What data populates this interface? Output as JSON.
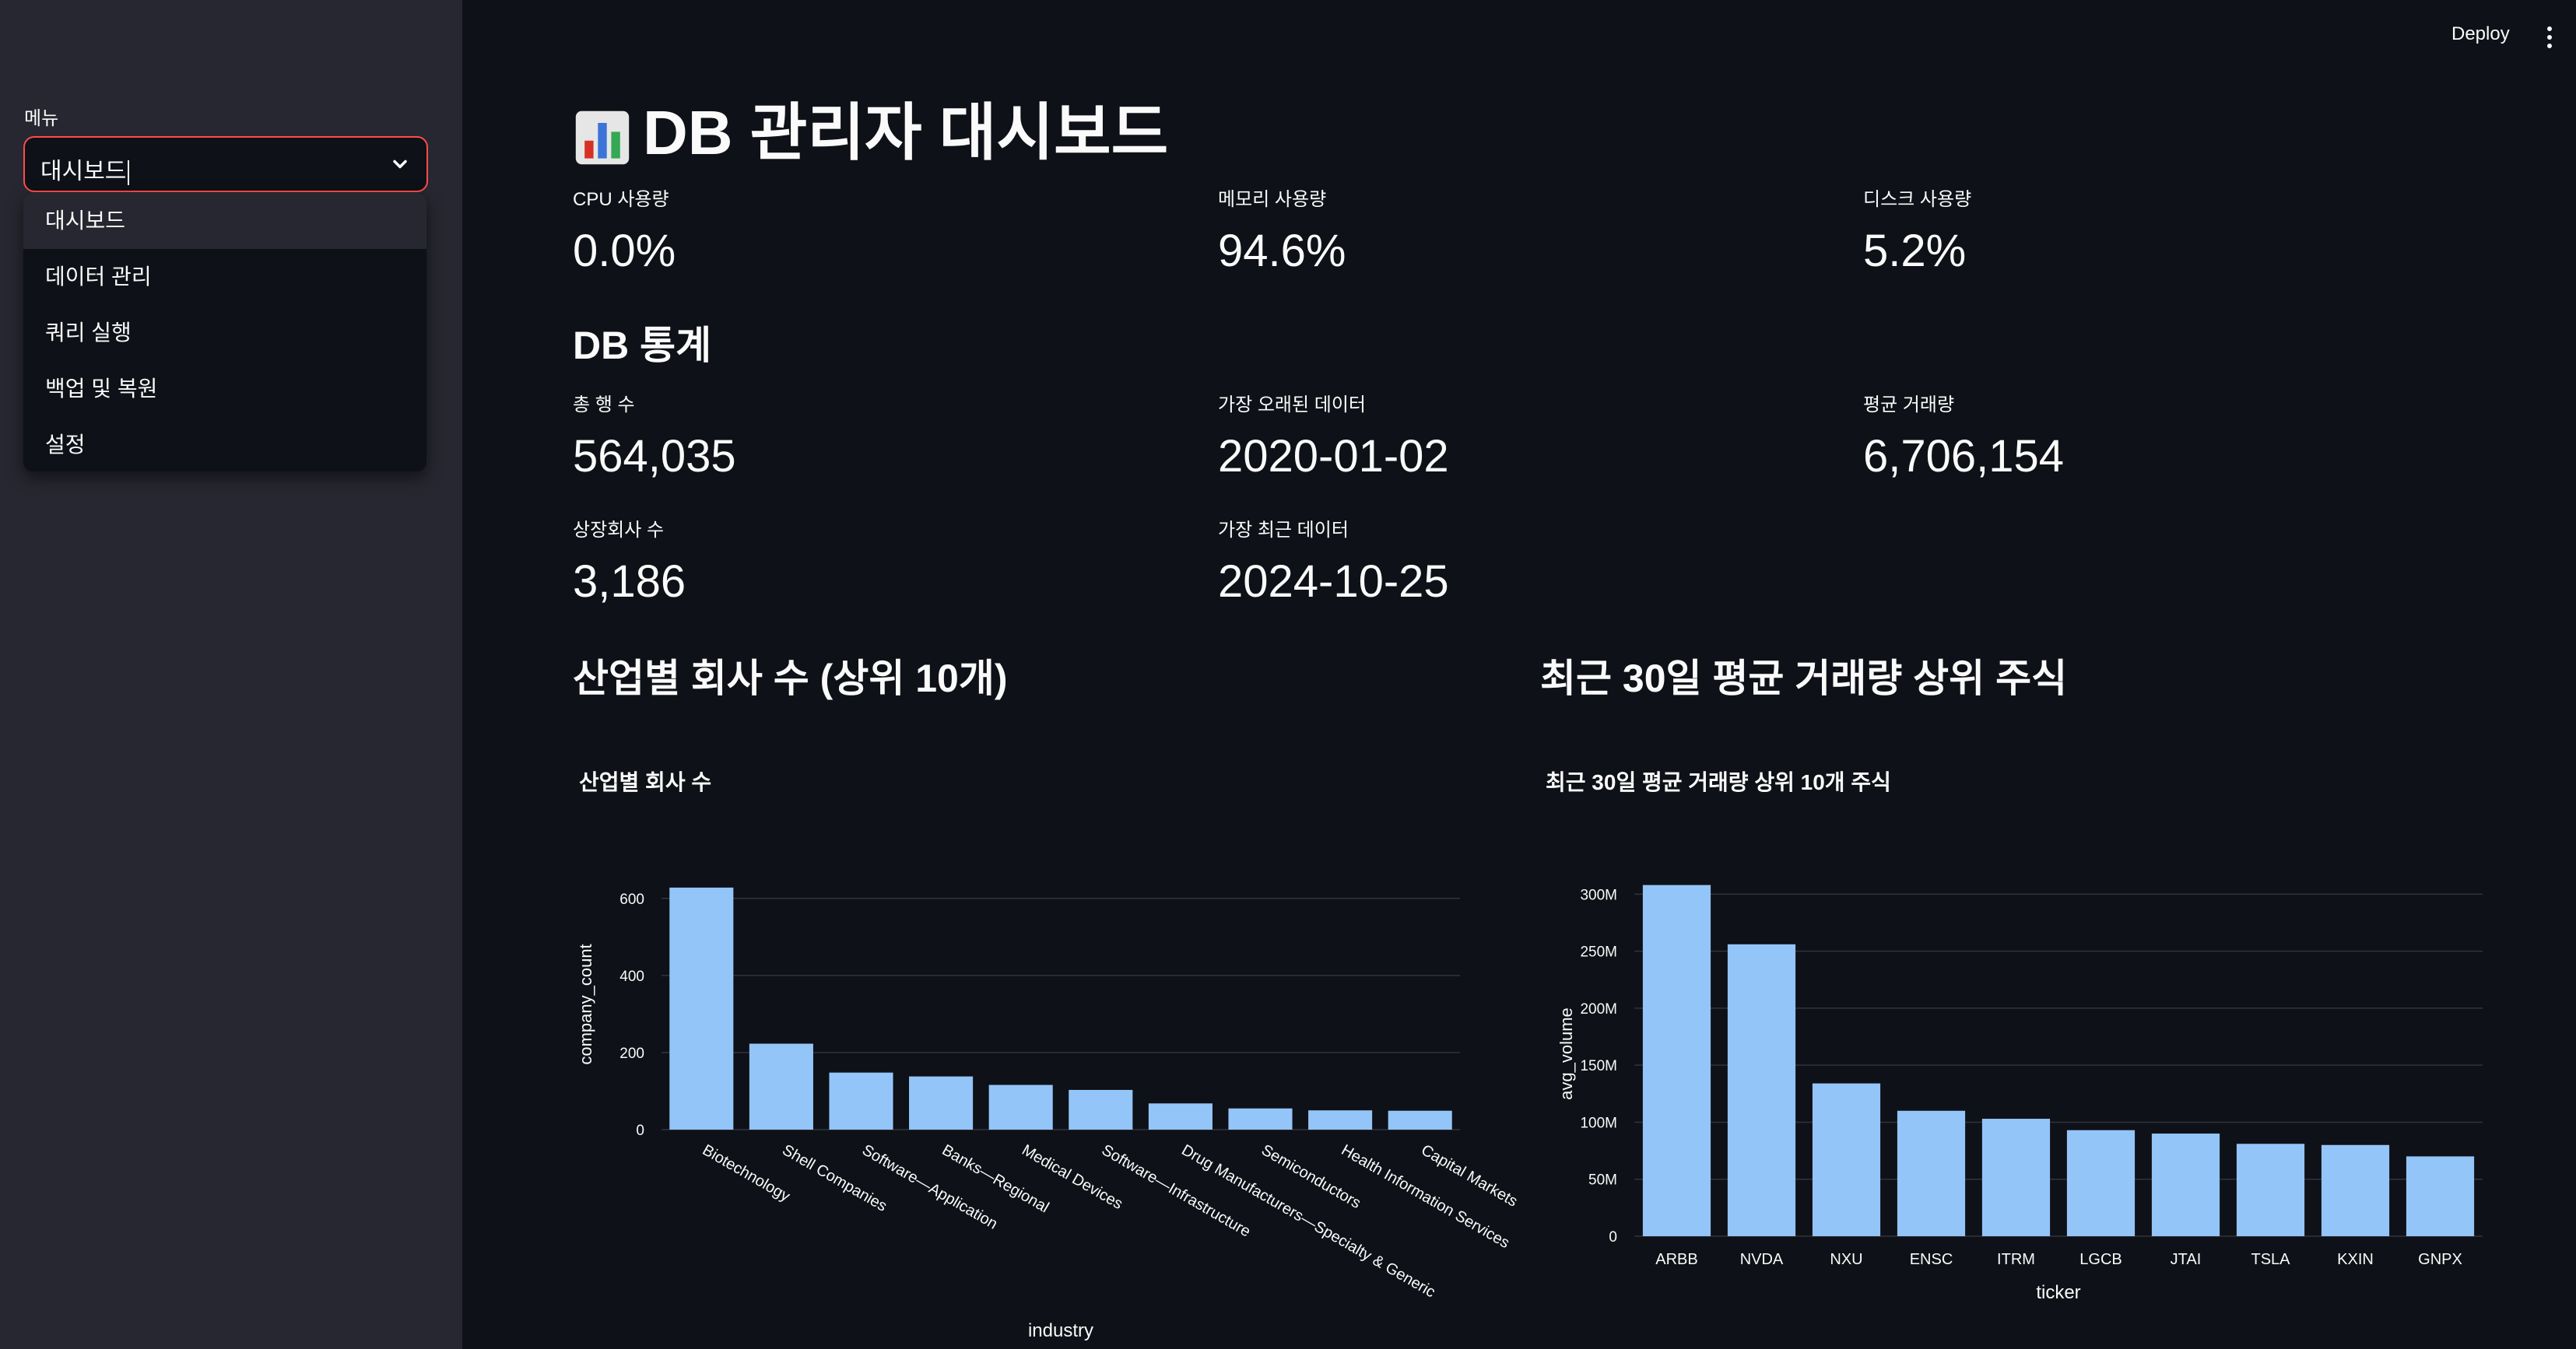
{
  "sidebar": {
    "menu_label": "메뉴",
    "selected": "대시보드",
    "options": [
      "대시보드",
      "데이터 관리",
      "쿼리 실행",
      "백업 및 복원",
      "설정"
    ]
  },
  "header": {
    "deploy": "Deploy"
  },
  "page": {
    "title": "DB 관리자 대시보드",
    "icon": "bar-chart-emoji"
  },
  "system_metrics": [
    {
      "label": "CPU 사용량",
      "value": "0.0%"
    },
    {
      "label": "메모리 사용량",
      "value": "94.6%"
    },
    {
      "label": "디스크 사용량",
      "value": "5.2%"
    }
  ],
  "db_stats": {
    "heading": "DB 통계",
    "metrics": [
      {
        "label": "총 행 수",
        "value": "564,035"
      },
      {
        "label": "가장 오래된 데이터",
        "value": "2020-01-02"
      },
      {
        "label": "평균 거래량",
        "value": "6,706,154"
      },
      {
        "label": "상장회사 수",
        "value": "3,186"
      },
      {
        "label": "가장 최근 데이터",
        "value": "2024-10-25"
      }
    ]
  },
  "sections": {
    "industry_heading": "산업별 회사 수 (상위 10개)",
    "volume_heading": "최근 30일 평균 거래량 상위 주식"
  },
  "colors": {
    "bar": "#94c5f8",
    "accent": "#ff4b4b",
    "bg": "#0e1117",
    "sidebar": "#262730",
    "grid": "#31333f"
  },
  "chart_data": [
    {
      "type": "bar",
      "title": "산업별 회사 수",
      "xlabel": "industry",
      "ylabel": "company_count",
      "ylim": [
        0,
        650
      ],
      "yticks": [
        0,
        200,
        400,
        600
      ],
      "ytick_labels": [
        "0",
        "200",
        "400",
        "600"
      ],
      "categories": [
        "Biotechnology",
        "Shell Companies",
        "Software—Application",
        "Banks—Regional",
        "Medical Devices",
        "Software—Infrastructure",
        "Drug Manufacturers—Specialty & Generic",
        "Semiconductors",
        "Health Information Services",
        "Capital Markets"
      ],
      "values": [
        628,
        223,
        148,
        138,
        116,
        103,
        68,
        55,
        50,
        49
      ]
    },
    {
      "type": "bar",
      "title": "최근 30일 평균 거래량 상위 10개 주식",
      "xlabel": "ticker",
      "ylabel": "avg_volume",
      "ylim": [
        0,
        320000000
      ],
      "yticks": [
        0,
        50000000,
        100000000,
        150000000,
        200000000,
        250000000,
        300000000
      ],
      "ytick_labels": [
        "0",
        "50M",
        "100M",
        "150M",
        "200M",
        "250M",
        "300M"
      ],
      "categories": [
        "ARBB",
        "NVDA",
        "NXU",
        "ENSC",
        "ITRM",
        "LGCB",
        "JTAI",
        "TSLA",
        "KXIN",
        "GNPX"
      ],
      "values": [
        308000000,
        256000000,
        134000000,
        110000000,
        103000000,
        93000000,
        90000000,
        81000000,
        80000000,
        70000000
      ]
    }
  ]
}
